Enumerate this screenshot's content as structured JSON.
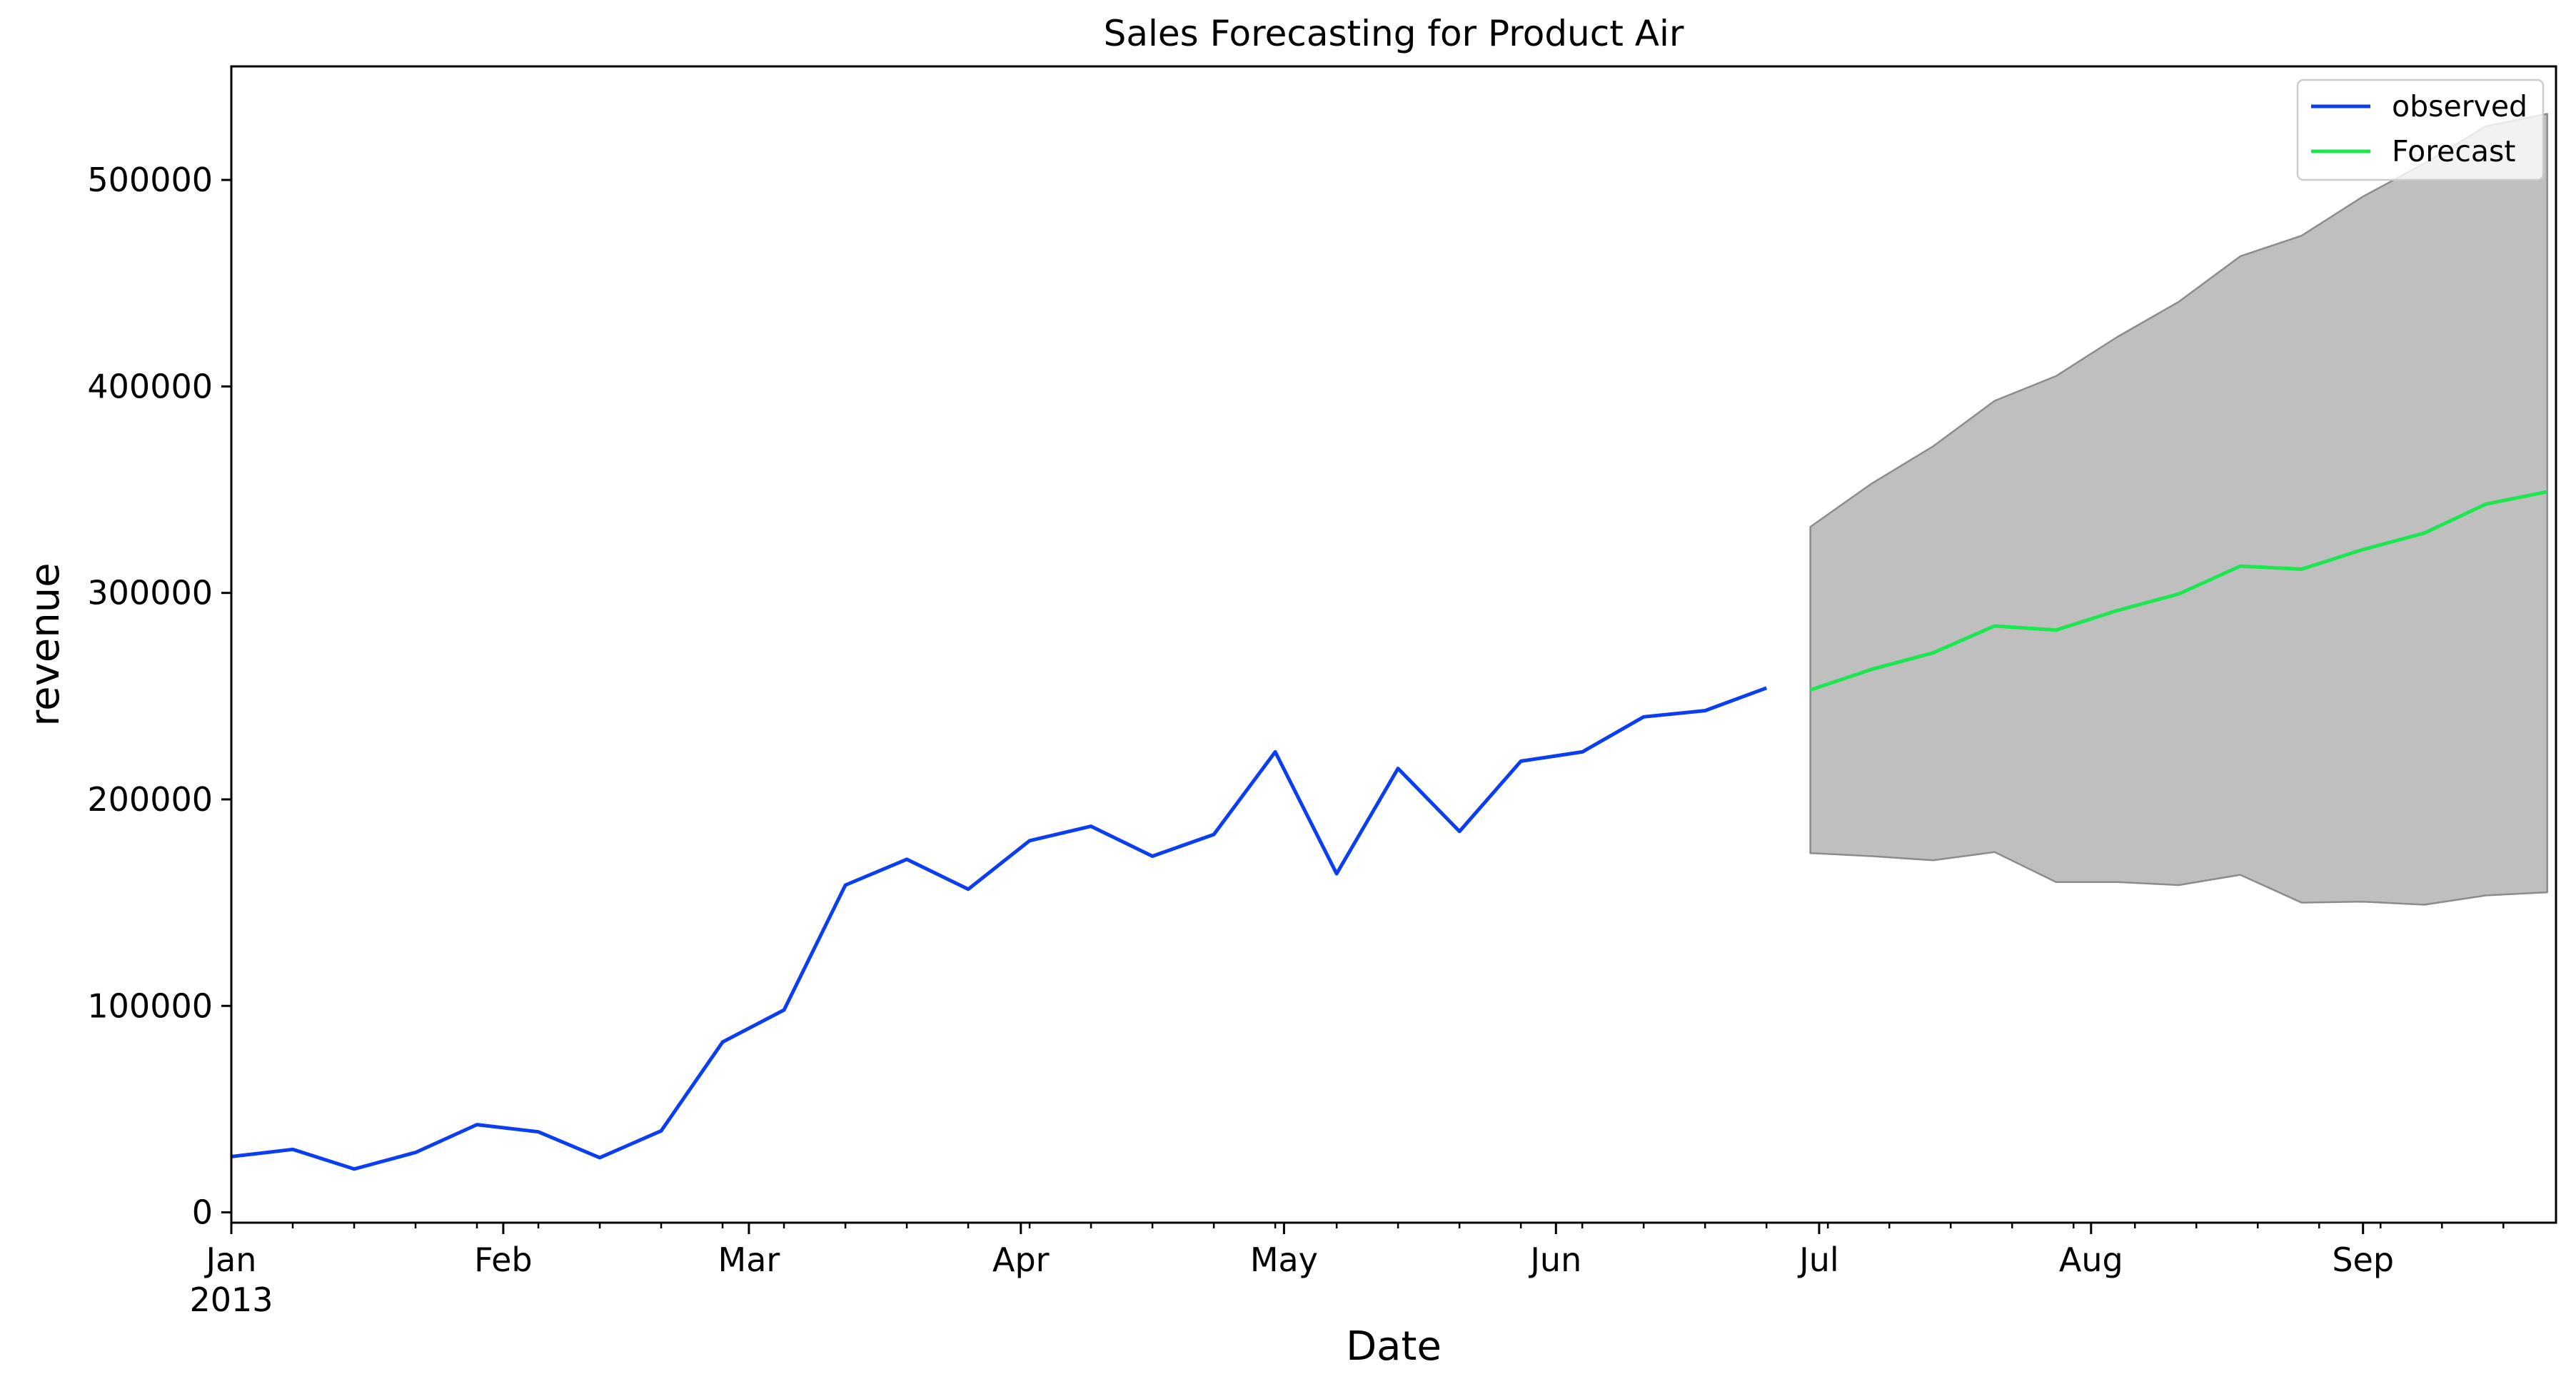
{
  "chart_data": {
    "type": "line",
    "title": "Sales Forecasting for Product Air",
    "xlabel": "Date",
    "ylabel": "revenue",
    "ylim": [
      -5000,
      555000
    ],
    "xlim": [
      "2013-01-01",
      "2013-09-23"
    ],
    "yticks": [
      {
        "value": 0,
        "label": "0"
      },
      {
        "value": 100000,
        "label": "100000"
      },
      {
        "value": 200000,
        "label": "200000"
      },
      {
        "value": 300000,
        "label": "300000"
      },
      {
        "value": 400000,
        "label": "400000"
      },
      {
        "value": 500000,
        "label": "500000"
      }
    ],
    "xticks_major": [
      {
        "date": "2013-01-01",
        "label": "Jan",
        "sublabel": "2013"
      },
      {
        "date": "2013-02-01",
        "label": "Feb"
      },
      {
        "date": "2013-03-01",
        "label": "Mar"
      },
      {
        "date": "2013-04-01",
        "label": "Apr"
      },
      {
        "date": "2013-05-01",
        "label": "May"
      },
      {
        "date": "2013-06-01",
        "label": "Jun"
      },
      {
        "date": "2013-07-01",
        "label": "Jul"
      },
      {
        "date": "2013-08-01",
        "label": "Aug"
      },
      {
        "date": "2013-09-01",
        "label": "Sep"
      }
    ],
    "xticks_minor": [
      "2013-01-08",
      "2013-01-15",
      "2013-01-22",
      "2013-01-29",
      "2013-02-05",
      "2013-02-12",
      "2013-02-19",
      "2013-02-26",
      "2013-03-05",
      "2013-03-12",
      "2013-03-19",
      "2013-03-26",
      "2013-04-02",
      "2013-04-09",
      "2013-04-16",
      "2013-04-23",
      "2013-04-30",
      "2013-05-07",
      "2013-05-14",
      "2013-05-21",
      "2013-05-28",
      "2013-06-04",
      "2013-06-11",
      "2013-06-18",
      "2013-06-25",
      "2013-07-02",
      "2013-07-09",
      "2013-07-16",
      "2013-07-23",
      "2013-07-30",
      "2013-08-06",
      "2013-08-13",
      "2013-08-20",
      "2013-08-27",
      "2013-09-03",
      "2013-09-10",
      "2013-09-17"
    ],
    "series": [
      {
        "name": "observed",
        "color": "#0b3ef0",
        "x": [
          "2013-01-01",
          "2013-01-08",
          "2013-01-15",
          "2013-01-22",
          "2013-01-29",
          "2013-02-05",
          "2013-02-12",
          "2013-02-19",
          "2013-02-26",
          "2013-03-05",
          "2013-03-12",
          "2013-03-19",
          "2013-03-26",
          "2013-04-02",
          "2013-04-09",
          "2013-04-16",
          "2013-04-23",
          "2013-04-30",
          "2013-05-07",
          "2013-05-14",
          "2013-05-21",
          "2013-05-28",
          "2013-06-04",
          "2013-06-11",
          "2013-06-18",
          "2013-06-25"
        ],
        "y": [
          27000,
          30500,
          21000,
          29000,
          42500,
          39000,
          26500,
          39500,
          82500,
          98000,
          158500,
          171000,
          156500,
          180000,
          187000,
          172500,
          183000,
          223000,
          164000,
          215000,
          184500,
          218500,
          223000,
          240000,
          243000,
          254000
        ]
      },
      {
        "name": "Forecast",
        "color": "#1ee650",
        "x": [
          "2013-06-30",
          "2013-07-07",
          "2013-07-14",
          "2013-07-21",
          "2013-07-28",
          "2013-08-04",
          "2013-08-11",
          "2013-08-18",
          "2013-08-25",
          "2013-09-01",
          "2013-09-08",
          "2013-09-15",
          "2013-09-22"
        ],
        "y": [
          253000,
          263000,
          271000,
          284000,
          282000,
          291500,
          299500,
          313000,
          311500,
          321000,
          329000,
          343000,
          349000
        ]
      }
    ],
    "confidence_interval": {
      "color": "#bfbfbf",
      "edge_color": "#8c8c8c",
      "x": [
        "2013-06-30",
        "2013-07-07",
        "2013-07-14",
        "2013-07-21",
        "2013-07-28",
        "2013-08-04",
        "2013-08-11",
        "2013-08-18",
        "2013-08-25",
        "2013-09-01",
        "2013-09-08",
        "2013-09-15",
        "2013-09-22"
      ],
      "upper": [
        332000,
        353000,
        371000,
        393000,
        405000,
        424000,
        441000,
        463000,
        473000,
        492000,
        508000,
        526000,
        532000
      ],
      "lower": [
        174000,
        172500,
        170500,
        174500,
        160000,
        160000,
        158500,
        163500,
        150000,
        150500,
        149000,
        153500,
        155000
      ]
    },
    "grid": false,
    "legend": {
      "position": "top-right",
      "entries": [
        {
          "label": "observed",
          "color": "#0b3ef0"
        },
        {
          "label": "Forecast",
          "color": "#1ee650"
        }
      ]
    }
  }
}
